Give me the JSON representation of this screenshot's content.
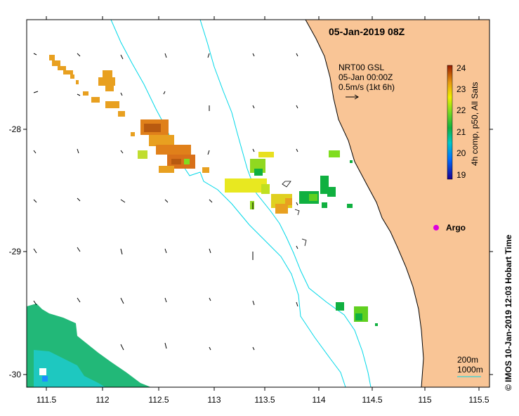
{
  "map": {
    "title": "05-Jan-2019 08Z",
    "info_lines": [
      "NRT00 GSL",
      "05-Jan 00:00Z",
      "0.5m/s (1kt 6h)"
    ],
    "lon_ticks": [
      "111.5",
      "112",
      "112.5",
      "113",
      "113.5",
      "114",
      "114.5",
      "115",
      "115.5"
    ],
    "lat_ticks": [
      "-28",
      "-29",
      "-30"
    ],
    "lon_range": [
      111.3,
      115.6
    ],
    "lat_range": [
      -27.0,
      -30.1
    ],
    "colorbar": {
      "label": "4h comp, p50, All Sats",
      "ticks": [
        "24",
        "23",
        "22",
        "21",
        "20",
        "19"
      ],
      "range": [
        19,
        24
      ]
    },
    "argo_label": "Argo",
    "scale_labels": [
      "200m",
      "1000m"
    ],
    "credit": "© IMOS 10-Jan-2019 12:03 Hobart Time",
    "colors": {
      "land": "#f9c596",
      "isobath": "#00d8e8",
      "argo": "#dd00dd",
      "frame": "#000000"
    }
  }
}
